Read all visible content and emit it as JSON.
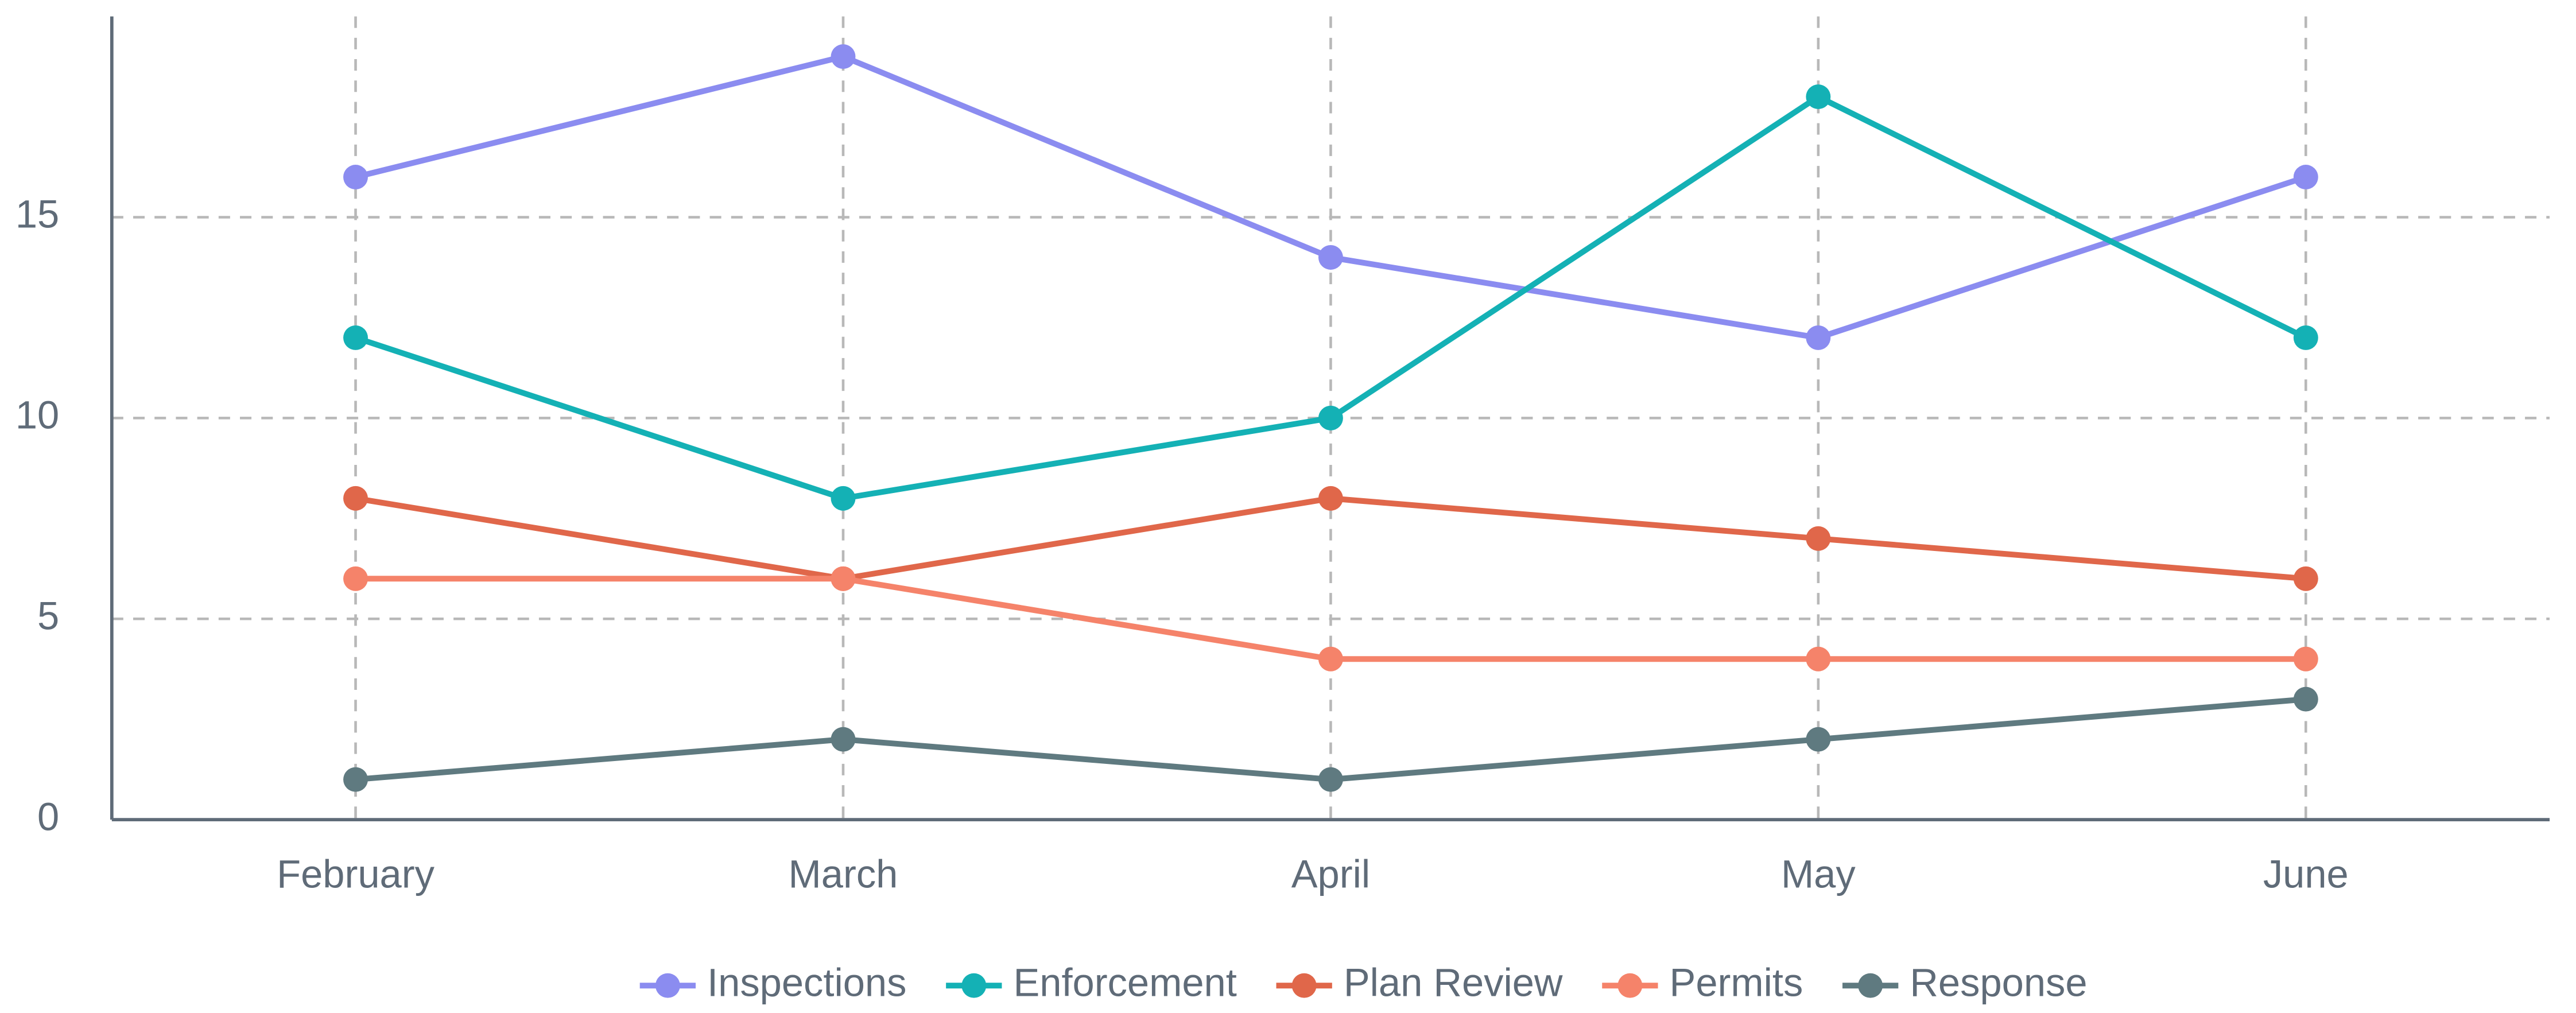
{
  "chart_data": {
    "type": "line",
    "categories": [
      "February",
      "March",
      "April",
      "May",
      "June"
    ],
    "series": [
      {
        "name": "Inspections",
        "color": "#8b8cf0",
        "values": [
          16,
          19,
          14,
          12,
          16
        ]
      },
      {
        "name": "Enforcement",
        "color": "#14b1b5",
        "values": [
          12,
          8,
          10,
          18,
          12
        ]
      },
      {
        "name": "Plan Review",
        "color": "#e0674a",
        "values": [
          8,
          6,
          8,
          7,
          6
        ]
      },
      {
        "name": "Permits",
        "color": "#f5836a",
        "values": [
          6,
          6,
          4,
          4,
          4
        ]
      },
      {
        "name": "Response",
        "color": "#5f7a80",
        "values": [
          1,
          2,
          1,
          2,
          3
        ]
      }
    ],
    "ylim": [
      0,
      20
    ],
    "yticks": [
      0,
      5,
      10,
      15
    ],
    "grid": true,
    "legend": "bottom"
  }
}
